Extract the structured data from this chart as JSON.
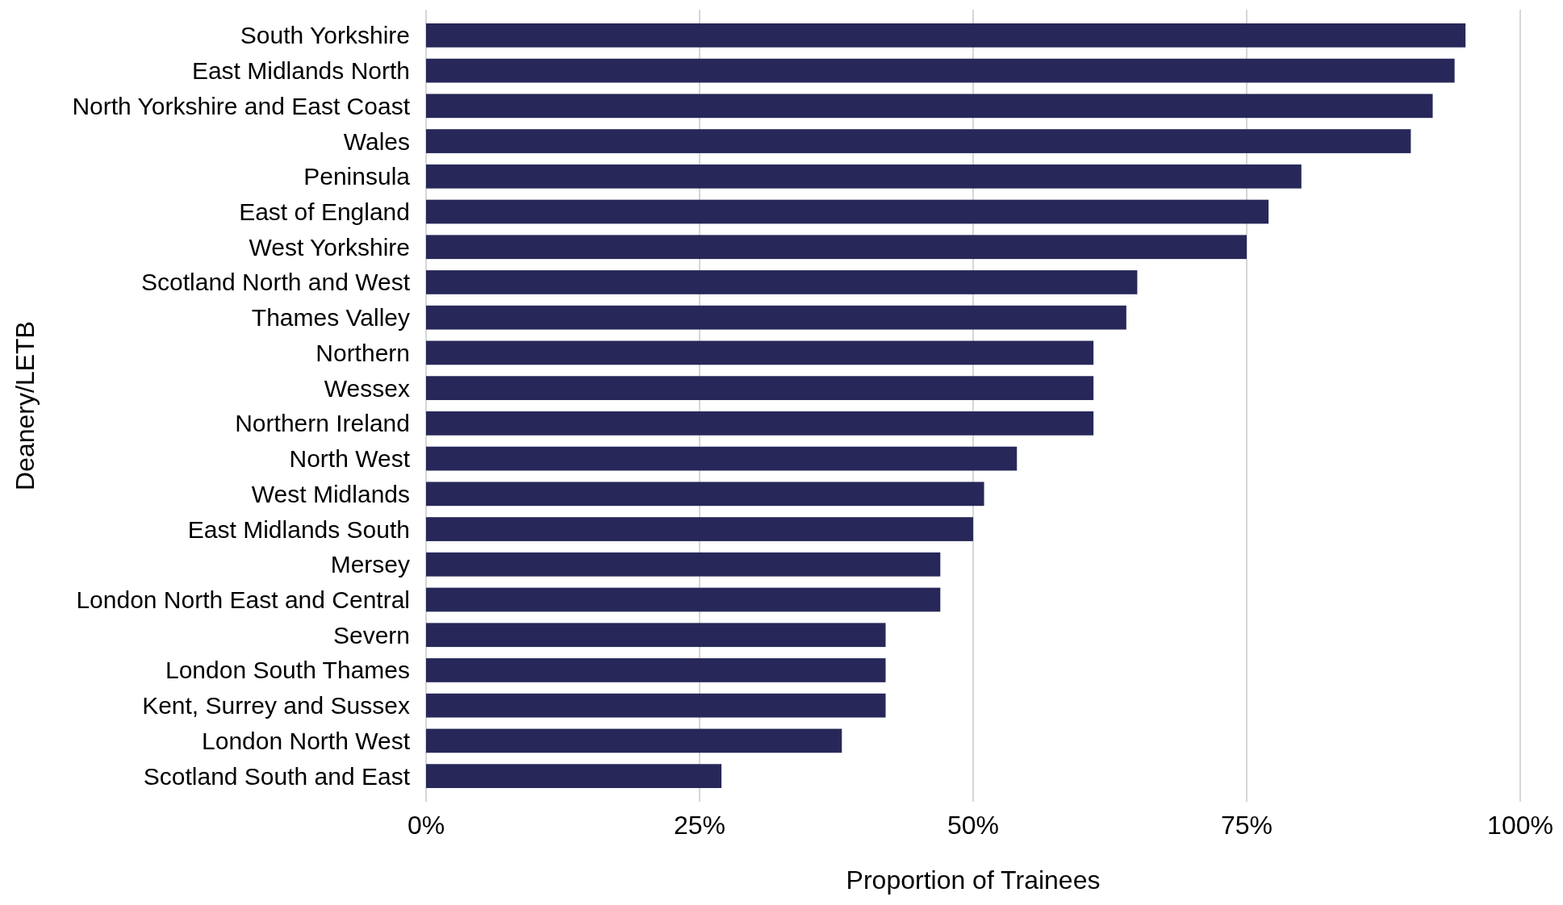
{
  "chart_data": {
    "type": "bar",
    "orientation": "horizontal",
    "xlabel": "Proportion of Trainees",
    "ylabel": "Deanery/LETB",
    "categories": [
      "South Yorkshire",
      "East Midlands North",
      "North Yorkshire and East Coast",
      "Wales",
      "Peninsula",
      "East of England",
      "West Yorkshire",
      "Scotland North and West",
      "Thames Valley",
      "Northern",
      "Wessex",
      "Northern Ireland",
      "North West",
      "West Midlands",
      "East Midlands South",
      "Mersey",
      "London North East and Central",
      "Severn",
      "London South Thames",
      "Kent, Surrey and Sussex",
      "London North West",
      "Scotland South and East"
    ],
    "values": [
      95,
      94,
      92,
      90,
      80,
      77,
      75,
      65,
      64,
      61,
      61,
      61,
      54,
      51,
      50,
      47,
      47,
      42,
      42,
      42,
      38,
      27
    ],
    "color": "#272859",
    "xlim": [
      0,
      100
    ],
    "xticks": [
      {
        "value": 0,
        "label": "0%"
      },
      {
        "value": 25,
        "label": "25%"
      },
      {
        "value": 50,
        "label": "50%"
      },
      {
        "value": 75,
        "label": "75%"
      },
      {
        "value": 100,
        "label": "100%"
      }
    ],
    "grid": "x"
  }
}
